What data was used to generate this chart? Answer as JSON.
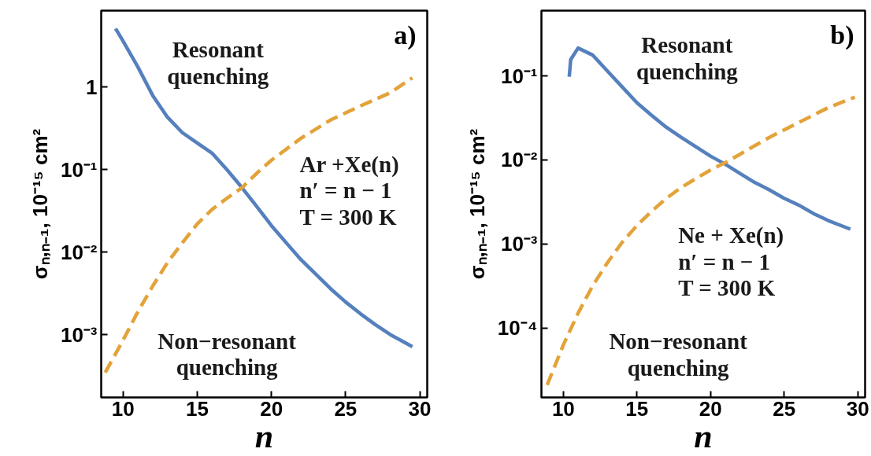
{
  "chart_data": [
    {
      "type": "line",
      "title": "a)",
      "xlabel": "n",
      "ylabel": "σₙ,ₙ₋₁, 10⁻¹⁵ cm²",
      "log": "y",
      "grid": false,
      "xlim": [
        8.53,
        30.5
      ],
      "ylim": [
        0.000175,
        8.4
      ],
      "xticks": [
        10,
        15,
        20,
        25,
        30
      ],
      "yticks": [
        {
          "value": 0.001,
          "label": "10⁻³"
        },
        {
          "value": 0.01,
          "label": "10⁻²"
        },
        {
          "value": 0.1,
          "label": "10⁻¹"
        },
        1
      ],
      "series": [
        {
          "color": "#5580bd",
          "line_style": "solid",
          "x": [
            9.5,
            10,
            11,
            12,
            13,
            14,
            15,
            16,
            17,
            18,
            19,
            20,
            21,
            22,
            23,
            24,
            25,
            26,
            27,
            28,
            29.5
          ],
          "values": [
            5.1,
            3.6,
            1.75,
            0.79,
            0.43,
            0.28,
            0.21,
            0.158,
            0.1,
            0.061,
            0.036,
            0.021,
            0.013,
            0.0081,
            0.0054,
            0.0036,
            0.0025,
            0.0018,
            0.00133,
            0.00101,
            0.00072
          ]
        },
        {
          "color": "#e3a33a",
          "line_style": "dashed",
          "x": [
            8.8,
            10,
            11,
            12,
            13,
            14,
            15,
            16,
            17,
            18,
            19,
            20,
            22,
            24,
            26,
            28,
            29.5
          ],
          "values": [
            0.00035,
            0.00086,
            0.0019,
            0.0039,
            0.0075,
            0.013,
            0.022,
            0.033,
            0.045,
            0.06,
            0.09,
            0.13,
            0.24,
            0.4,
            0.59,
            0.85,
            1.29
          ]
        }
      ],
      "annotations": [
        "Resonant\nquenching",
        "Non−resonant\nquenching",
        "Ar +Xe(n)\nn′ = n − 1\nT = 300 K"
      ]
    },
    {
      "type": "line",
      "title": "b)",
      "xlabel": "n",
      "ylabel": "σₙ,ₙ₋₁, 10⁻¹⁵ cm²",
      "log": "y",
      "grid": false,
      "xlim": [
        8.51,
        30.5
      ],
      "ylim": [
        1.49e-05,
        0.6
      ],
      "xticks": [
        10,
        15,
        20,
        25,
        30
      ],
      "yticks": [
        {
          "value": 0.0001,
          "label": "10⁻⁴"
        },
        {
          "value": 0.001,
          "label": "10⁻³"
        },
        {
          "value": 0.01,
          "label": "10⁻²"
        },
        {
          "value": 0.1,
          "label": "10⁻¹"
        }
      ],
      "series": [
        {
          "color": "#5580bd",
          "line_style": "solid",
          "x": [
            10.4,
            10.5,
            11,
            12,
            13,
            14,
            15,
            16,
            17,
            18,
            19,
            20,
            21,
            22,
            23,
            24,
            25,
            26,
            27,
            28,
            29.5
          ],
          "values": [
            0.098,
            0.157,
            0.215,
            0.177,
            0.114,
            0.074,
            0.048,
            0.034,
            0.0245,
            0.0186,
            0.0144,
            0.0111,
            0.0089,
            0.0069,
            0.0054,
            0.0044,
            0.0035,
            0.0029,
            0.0023,
            0.0019,
            0.0015
          ]
        },
        {
          "color": "#e3a33a",
          "line_style": "dashed",
          "x": [
            8.9,
            10,
            11,
            12,
            13,
            14,
            15,
            16,
            17,
            18,
            19,
            20,
            21,
            22,
            24,
            26,
            28,
            29.8
          ],
          "values": [
            2.1e-05,
            6.3e-05,
            0.00015,
            0.00032,
            0.0006,
            0.00105,
            0.00166,
            0.00245,
            0.0035,
            0.0047,
            0.006,
            0.0076,
            0.0093,
            0.0117,
            0.0186,
            0.028,
            0.042,
            0.056
          ]
        }
      ],
      "annotations": [
        "Resonant\nquenching",
        "Non−resonant\nquenching",
        "Ne + Xe(n)\nn′ = n − 1\nT = 300 K"
      ]
    }
  ]
}
